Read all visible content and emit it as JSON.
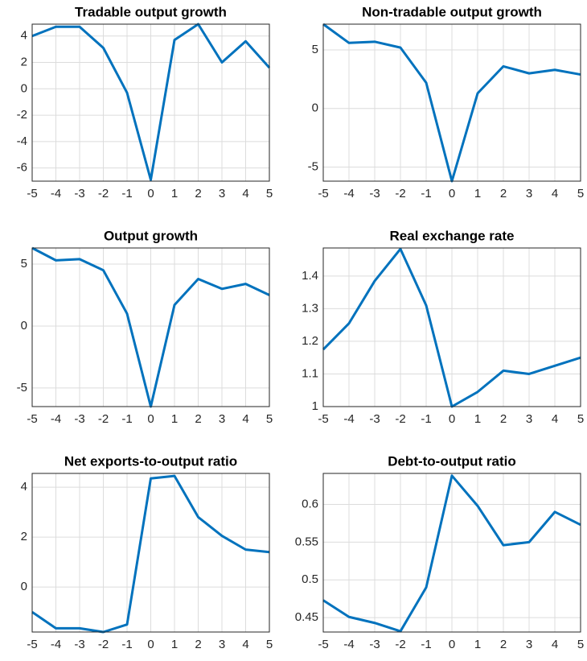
{
  "chart_data": [
    {
      "type": "line",
      "title": "Tradable output growth",
      "x": [
        -5,
        -4,
        -3,
        -2,
        -1,
        0,
        1,
        2,
        3,
        4,
        5
      ],
      "values": [
        4,
        4.7,
        4.7,
        3.1,
        -0.3,
        -6.9,
        3.7,
        4.9,
        2,
        3.6,
        1.6
      ],
      "color": "#0072bd",
      "xlim": [
        -5,
        5
      ],
      "ylim": [
        -7,
        4.9
      ],
      "xticks": [
        -5,
        -4,
        -3,
        -2,
        -1,
        0,
        1,
        2,
        3,
        4,
        5
      ],
      "yticks": [
        -6,
        -4,
        -2,
        0,
        2,
        4
      ],
      "grid": true
    },
    {
      "type": "line",
      "title": "Non-tradable output growth",
      "x": [
        -5,
        -4,
        -3,
        -2,
        -1,
        0,
        1,
        2,
        3,
        4,
        5
      ],
      "values": [
        7.2,
        5.6,
        5.7,
        5.2,
        2.2,
        -6.2,
        1.3,
        3.6,
        3.0,
        3.3,
        2.9
      ],
      "color": "#0072bd",
      "xlim": [
        -5,
        5
      ],
      "ylim": [
        -6.2,
        7.2
      ],
      "xticks": [
        -5,
        -4,
        -3,
        -2,
        -1,
        0,
        1,
        2,
        3,
        4,
        5
      ],
      "yticks": [
        -5,
        0,
        5
      ],
      "grid": true
    },
    {
      "type": "line",
      "title": "Output growth",
      "x": [
        -5,
        -4,
        -3,
        -2,
        -1,
        0,
        1,
        2,
        3,
        4,
        5
      ],
      "values": [
        6.3,
        5.3,
        5.4,
        4.5,
        1.0,
        -6.5,
        1.7,
        3.8,
        3.0,
        3.4,
        2.5
      ],
      "color": "#0072bd",
      "xlim": [
        -5,
        5
      ],
      "ylim": [
        -6.5,
        6.3
      ],
      "xticks": [
        -5,
        -4,
        -3,
        -2,
        -1,
        0,
        1,
        2,
        3,
        4,
        5
      ],
      "yticks": [
        -5,
        0,
        5
      ],
      "grid": true
    },
    {
      "type": "line",
      "title": "Real exchange rate",
      "x": [
        -5,
        -4,
        -3,
        -2,
        -1,
        0,
        1,
        2,
        3,
        4,
        5
      ],
      "values": [
        1.175,
        1.255,
        1.385,
        1.483,
        1.31,
        1.0,
        1.045,
        1.11,
        1.1,
        1.125,
        1.15
      ],
      "color": "#0072bd",
      "xlim": [
        -5,
        5
      ],
      "ylim": [
        1,
        1.486
      ],
      "xticks": [
        -5,
        -4,
        -3,
        -2,
        -1,
        0,
        1,
        2,
        3,
        4,
        5
      ],
      "yticks": [
        1,
        1.1,
        1.2,
        1.3,
        1.4
      ],
      "grid": true
    },
    {
      "type": "line",
      "title": "Net exports-to-output ratio",
      "x": [
        -5,
        -4,
        -3,
        -2,
        -1,
        0,
        1,
        2,
        3,
        4,
        5
      ],
      "values": [
        -1.0,
        -1.65,
        -1.65,
        -1.8,
        -1.5,
        4.35,
        4.45,
        2.8,
        2.05,
        1.5,
        1.4
      ],
      "color": "#0072bd",
      "xlim": [
        -5,
        5
      ],
      "ylim": [
        -1.8,
        4.55
      ],
      "xticks": [
        -5,
        -4,
        -3,
        -2,
        -1,
        0,
        1,
        2,
        3,
        4,
        5
      ],
      "yticks": [
        0,
        2,
        4
      ],
      "grid": true
    },
    {
      "type": "line",
      "title": "Debt-to-output ratio",
      "x": [
        -5,
        -4,
        -3,
        -2,
        -1,
        0,
        1,
        2,
        3,
        4,
        5
      ],
      "values": [
        0.473,
        0.451,
        0.443,
        0.432,
        0.49,
        0.638,
        0.598,
        0.546,
        0.55,
        0.59,
        0.573
      ],
      "color": "#0072bd",
      "xlim": [
        -5,
        5
      ],
      "ylim": [
        0.431,
        0.641
      ],
      "xticks": [
        -5,
        -4,
        -3,
        -2,
        -1,
        0,
        1,
        2,
        3,
        4,
        5
      ],
      "yticks": [
        0.45,
        0.5,
        0.55,
        0.6
      ],
      "grid": true
    }
  ]
}
